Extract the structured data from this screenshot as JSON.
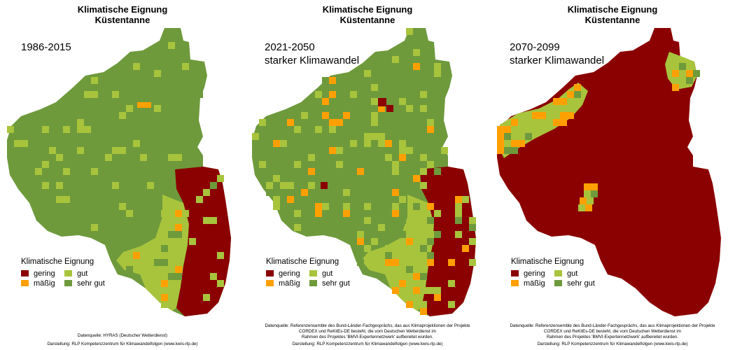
{
  "title_line1": "Klimatische Eignung",
  "title_line2": "Küstentanne",
  "legend": {
    "title": "Klimatische Eignung",
    "classes": [
      {
        "key": "gering",
        "label": "gering",
        "color": "#8b0000"
      },
      {
        "key": "gut",
        "label": "gut",
        "color": "#a8c43c"
      },
      {
        "key": "massig",
        "label": "mäßig",
        "color": "#ff9f00"
      },
      {
        "key": "sehr_gut",
        "label": "sehr gut",
        "color": "#6e9a3c"
      }
    ]
  },
  "panels": [
    {
      "period_line1": "1986-2015",
      "period_line2": "",
      "source_lines": [
        "Datenquelle: HYRAS (Deutscher Wetterdienst)"
      ],
      "credit": "Darstellung: RLP Kompetenzzentrum für Klimawandelfolgen (www.kwis-rlp.de)"
    },
    {
      "period_line1": "2021-2050",
      "period_line2": "starker Klimawandel",
      "source_lines": [
        "Datenquelle: Referenzensemble des Bund-Länder-Fachgesprächs, das aus Klimaprojektionen der Projekte",
        "CORDEX und ReKliEs-DE besteht, die vom Deutschen Wetterdienst im",
        "Rahmen des Projektes 'BMVI-Expertennetzwerk' aufbereitet wurden."
      ],
      "credit": "Darstellung: RLP Kompetenzzentrum für Klimawandelfolgen (www.kwis-rlp.de)"
    },
    {
      "period_line1": "2070-2099",
      "period_line2": "starker Klimawandel",
      "source_lines": [
        "Datenquelle: Referenzensemble des Bund-Länder-Fachgesprächs, das aus Klimaprojektionen der Projekte",
        "CORDEX und ReKliEs-DE besteht, die vom Deutschen Wetterdienst im",
        "Rahmen des Projektes 'BMVI-Expertennetzwerk' aufbereitet wurden."
      ],
      "credit": "Darstellung: RLP Kompetenzzentrum für Klimawandelfolgen (www.kwis-rlp.de)"
    }
  ]
}
